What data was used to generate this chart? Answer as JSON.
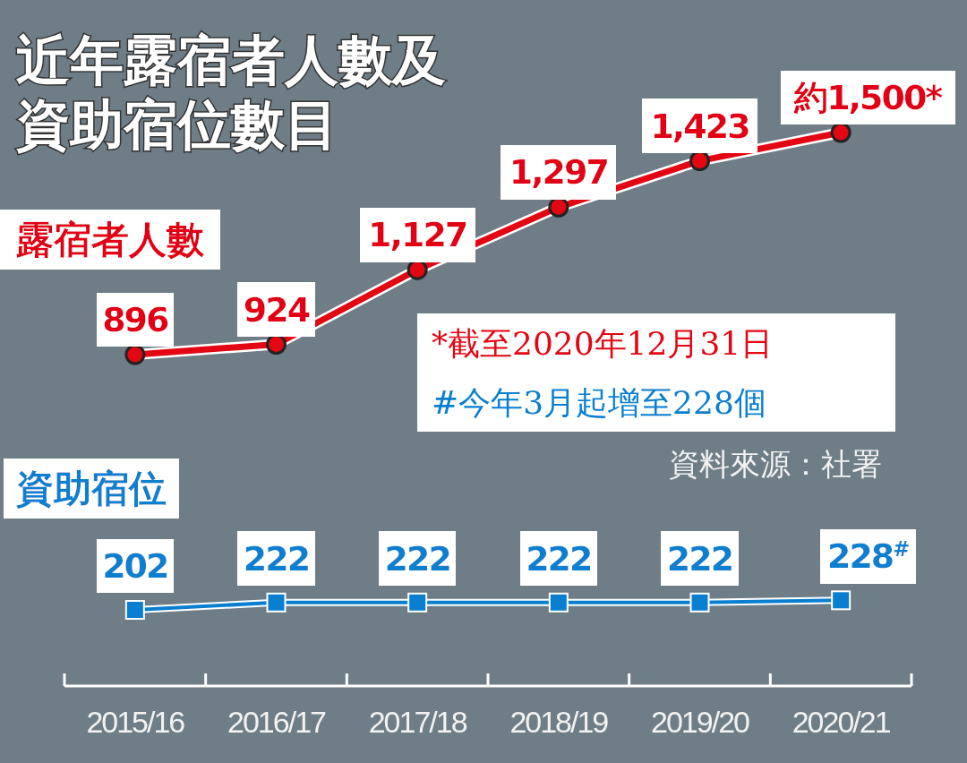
{
  "chart_data": {
    "type": "line",
    "title": "近年露宿者人數及資助宿位數目",
    "categories": [
      "2015/16",
      "2016/17",
      "2017/18",
      "2018/19",
      "2019/20",
      "2020/21"
    ],
    "series": [
      {
        "name": "露宿者人數",
        "color": "#e30613",
        "marker": "circle",
        "values": [
          896,
          924,
          1127,
          1297,
          1423,
          1500
        ],
        "value_labels": [
          "896",
          "924",
          "1,127",
          "1,297",
          "1,423",
          "約1,500*"
        ]
      },
      {
        "name": "資助宿位",
        "color": "#0a7fd0",
        "marker": "square",
        "values": [
          202,
          222,
          222,
          222,
          222,
          228
        ],
        "value_labels": [
          "202",
          "222",
          "222",
          "222",
          "222",
          "228$^{#}$"
        ]
      }
    ],
    "tick_labels": "x",
    "annotations": [
      "*截至2020年12月31日",
      "#今年3月起增至228個",
      "資料來源：社署"
    ]
  }
}
